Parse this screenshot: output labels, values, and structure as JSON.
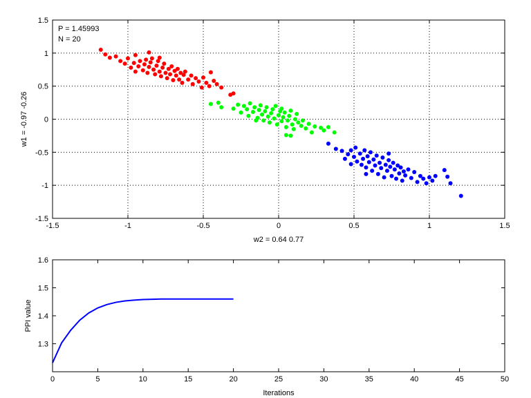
{
  "chart_data": [
    {
      "type": "scatter",
      "xlabel": "w2 = 0.64  0.77",
      "ylabel": "w1 = -0.97  -0.26",
      "xlim": [
        -1.5,
        1.5
      ],
      "ylim": [
        -1.5,
        1.5
      ],
      "xticks": [
        -1.5,
        -1,
        -0.5,
        0,
        0.5,
        1,
        1.5
      ],
      "yticks": [
        -1.5,
        -1,
        -0.5,
        0,
        0.5,
        1,
        1.5
      ],
      "xtick_labels": [
        "-1.5",
        "-1",
        "-0.5",
        "0",
        "0.5",
        "1",
        "1.5"
      ],
      "ytick_labels": [
        "-1.5",
        "-1",
        "-0.5",
        "0",
        "0.5",
        "1",
        "1.5"
      ],
      "grid": true,
      "annotations": [
        "P = 1.45993",
        "N = 20"
      ],
      "series": [
        {
          "color": "#ff0000",
          "points": [
            [
              -1.18,
              1.05
            ],
            [
              -1.15,
              0.98
            ],
            [
              -1.12,
              0.93
            ],
            [
              -1.08,
              0.95
            ],
            [
              -1.05,
              0.88
            ],
            [
              -1.02,
              0.84
            ],
            [
              -1.0,
              0.92
            ],
            [
              -0.98,
              0.78
            ],
            [
              -0.96,
              0.85
            ],
            [
              -0.95,
              0.97
            ],
            [
              -0.93,
              0.8
            ],
            [
              -0.92,
              0.88
            ],
            [
              -0.9,
              0.74
            ],
            [
              -0.89,
              0.83
            ],
            [
              -0.88,
              0.9
            ],
            [
              -0.87,
              0.7
            ],
            [
              -0.86,
              0.79
            ],
            [
              -0.85,
              0.86
            ],
            [
              -0.84,
              0.92
            ],
            [
              -0.83,
              0.75
            ],
            [
              -0.82,
              0.68
            ],
            [
              -0.81,
              0.81
            ],
            [
              -0.8,
              0.88
            ],
            [
              -0.79,
              0.72
            ],
            [
              -0.78,
              0.65
            ],
            [
              -0.77,
              0.78
            ],
            [
              -0.76,
              0.84
            ],
            [
              -0.75,
              0.7
            ],
            [
              -0.74,
              0.62
            ],
            [
              -0.73,
              0.76
            ],
            [
              -0.72,
              0.68
            ],
            [
              -0.71,
              0.8
            ],
            [
              -0.7,
              0.59
            ],
            [
              -0.69,
              0.73
            ],
            [
              -0.68,
              0.66
            ],
            [
              -0.67,
              0.76
            ],
            [
              -0.66,
              0.6
            ],
            [
              -0.65,
              0.7
            ],
            [
              -0.64,
              0.55
            ],
            [
              -0.63,
              0.67
            ],
            [
              -0.62,
              0.72
            ],
            [
              -0.6,
              0.6
            ],
            [
              -0.58,
              0.66
            ],
            [
              -0.57,
              0.53
            ],
            [
              -0.55,
              0.62
            ],
            [
              -0.53,
              0.57
            ],
            [
              -0.51,
              0.48
            ],
            [
              -0.5,
              0.63
            ],
            [
              -0.48,
              0.55
            ],
            [
              -0.46,
              0.5
            ],
            [
              -0.45,
              0.71
            ],
            [
              -0.43,
              0.58
            ],
            [
              -0.41,
              0.53
            ],
            [
              -0.38,
              0.48
            ],
            [
              -0.32,
              0.37
            ],
            [
              -0.3,
              0.39
            ],
            [
              -0.86,
              1.01
            ],
            [
              -0.95,
              0.72
            ],
            [
              -0.79,
              0.93
            ]
          ]
        },
        {
          "color": "#00ff00",
          "points": [
            [
              -0.45,
              0.23
            ],
            [
              -0.4,
              0.25
            ],
            [
              -0.38,
              0.18
            ],
            [
              -0.3,
              0.16
            ],
            [
              -0.27,
              0.22
            ],
            [
              -0.25,
              0.1
            ],
            [
              -0.23,
              0.2
            ],
            [
              -0.21,
              0.15
            ],
            [
              -0.2,
              0.05
            ],
            [
              -0.19,
              0.24
            ],
            [
              -0.17,
              0.11
            ],
            [
              -0.16,
              0.18
            ],
            [
              -0.14,
              0.02
            ],
            [
              -0.13,
              0.14
            ],
            [
              -0.12,
              0.21
            ],
            [
              -0.11,
              0.07
            ],
            [
              -0.1,
              -0.02
            ],
            [
              -0.09,
              0.12
            ],
            [
              -0.08,
              0.18
            ],
            [
              -0.07,
              0.04
            ],
            [
              -0.06,
              -0.05
            ],
            [
              -0.05,
              0.09
            ],
            [
              -0.04,
              0.15
            ],
            [
              -0.03,
              0.01
            ],
            [
              -0.02,
              0.2
            ],
            [
              -0.01,
              -0.08
            ],
            [
              0.0,
              0.06
            ],
            [
              0.01,
              0.12
            ],
            [
              0.02,
              -0.03
            ],
            [
              0.03,
              0.03
            ],
            [
              0.04,
              0.1
            ],
            [
              0.05,
              -0.12
            ],
            [
              0.06,
              -0.02
            ],
            [
              0.07,
              0.05
            ],
            [
              0.08,
              0.13
            ],
            [
              0.09,
              -0.08
            ],
            [
              0.1,
              -0.15
            ],
            [
              0.11,
              0.0
            ],
            [
              0.12,
              0.08
            ],
            [
              0.13,
              -0.05
            ],
            [
              0.15,
              -0.1
            ],
            [
              0.16,
              -0.02
            ],
            [
              0.18,
              -0.14
            ],
            [
              0.2,
              -0.07
            ],
            [
              0.22,
              -0.2
            ],
            [
              0.24,
              -0.11
            ],
            [
              0.28,
              -0.13
            ],
            [
              0.3,
              -0.17
            ],
            [
              0.33,
              -0.12
            ],
            [
              0.37,
              -0.2
            ],
            [
              0.05,
              -0.24
            ],
            [
              0.02,
              0.16
            ],
            [
              -0.15,
              -0.02
            ],
            [
              0.08,
              -0.25
            ]
          ]
        },
        {
          "color": "#0000ff",
          "points": [
            [
              0.33,
              -0.37
            ],
            [
              0.38,
              -0.45
            ],
            [
              0.42,
              -0.48
            ],
            [
              0.44,
              -0.6
            ],
            [
              0.46,
              -0.53
            ],
            [
              0.48,
              -0.68
            ],
            [
              0.5,
              -0.57
            ],
            [
              0.51,
              -0.43
            ],
            [
              0.52,
              -0.64
            ],
            [
              0.54,
              -0.52
            ],
            [
              0.55,
              -0.69
            ],
            [
              0.56,
              -0.6
            ],
            [
              0.57,
              -0.47
            ],
            [
              0.58,
              -0.73
            ],
            [
              0.59,
              -0.56
            ],
            [
              0.6,
              -0.65
            ],
            [
              0.61,
              -0.5
            ],
            [
              0.62,
              -0.78
            ],
            [
              0.63,
              -0.61
            ],
            [
              0.64,
              -0.7
            ],
            [
              0.65,
              -0.55
            ],
            [
              0.66,
              -0.83
            ],
            [
              0.67,
              -0.66
            ],
            [
              0.68,
              -0.74
            ],
            [
              0.69,
              -0.58
            ],
            [
              0.7,
              -0.88
            ],
            [
              0.71,
              -0.69
            ],
            [
              0.72,
              -0.78
            ],
            [
              0.73,
              -0.62
            ],
            [
              0.74,
              -0.72
            ],
            [
              0.75,
              -0.86
            ],
            [
              0.76,
              -0.66
            ],
            [
              0.77,
              -0.76
            ],
            [
              0.78,
              -0.9
            ],
            [
              0.79,
              -0.7
            ],
            [
              0.8,
              -0.82
            ],
            [
              0.81,
              -0.73
            ],
            [
              0.82,
              -0.93
            ],
            [
              0.83,
              -0.79
            ],
            [
              0.84,
              -0.85
            ],
            [
              0.86,
              -0.76
            ],
            [
              0.88,
              -0.89
            ],
            [
              0.9,
              -0.8
            ],
            [
              0.92,
              -0.95
            ],
            [
              0.94,
              -0.86
            ],
            [
              0.96,
              -0.9
            ],
            [
              0.98,
              -0.97
            ],
            [
              1.0,
              -0.88
            ],
            [
              1.02,
              -0.93
            ],
            [
              1.04,
              -0.86
            ],
            [
              1.1,
              -0.77
            ],
            [
              1.12,
              -0.87
            ],
            [
              1.14,
              -0.97
            ],
            [
              1.21,
              -1.16
            ],
            [
              0.48,
              -0.47
            ],
            [
              0.73,
              -0.52
            ],
            [
              0.58,
              -0.83
            ]
          ]
        }
      ]
    },
    {
      "type": "line",
      "xlabel": "Iterations",
      "ylabel": "PPI value",
      "xlim": [
        0,
        50
      ],
      "ylim": [
        1.2,
        1.6
      ],
      "xticks": [
        0,
        5,
        10,
        15,
        20,
        25,
        30,
        35,
        40,
        45,
        50
      ],
      "yticks": [
        1.3,
        1.4,
        1.5,
        1.6
      ],
      "xtick_labels": [
        "0",
        "5",
        "10",
        "15",
        "20",
        "25",
        "30",
        "35",
        "40",
        "45",
        "50"
      ],
      "ytick_labels": [
        "1.3",
        "1.4",
        "1.5",
        "1.6"
      ],
      "grid": false,
      "series": [
        {
          "color": "#0000ff",
          "x": [
            0,
            1,
            2,
            3,
            4,
            5,
            6,
            7,
            8,
            9,
            10,
            11,
            12,
            13,
            14,
            15,
            16,
            17,
            18,
            19,
            20
          ],
          "values": [
            1.232,
            1.303,
            1.348,
            1.384,
            1.41,
            1.428,
            1.44,
            1.448,
            1.453,
            1.456,
            1.458,
            1.459,
            1.46,
            1.46,
            1.46,
            1.46,
            1.46,
            1.46,
            1.46,
            1.46,
            1.45993
          ]
        }
      ]
    }
  ]
}
